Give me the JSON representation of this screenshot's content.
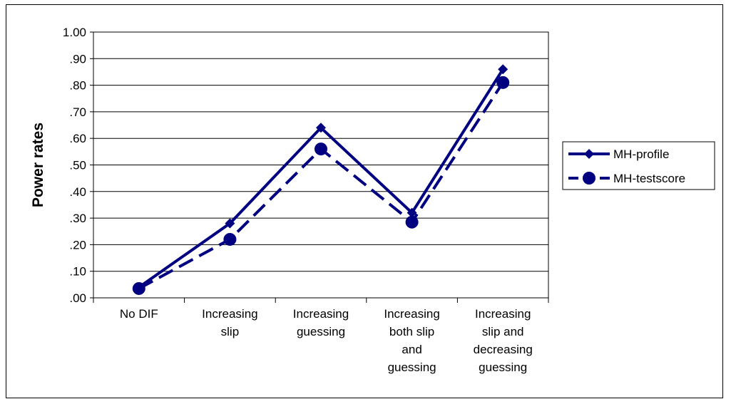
{
  "chart_data": {
    "type": "line",
    "ylabel": "Power rates",
    "xlabel": "",
    "ylim": [
      0,
      1
    ],
    "yticks": [
      {
        "value": 0.0,
        "label": ".00"
      },
      {
        "value": 0.1,
        "label": ".10"
      },
      {
        "value": 0.2,
        "label": ".20"
      },
      {
        "value": 0.3,
        "label": ".30"
      },
      {
        "value": 0.4,
        "label": ".40"
      },
      {
        "value": 0.5,
        "label": ".50"
      },
      {
        "value": 0.6,
        "label": ".60"
      },
      {
        "value": 0.7,
        "label": ".70"
      },
      {
        "value": 0.8,
        "label": ".80"
      },
      {
        "value": 0.9,
        "label": ".90"
      },
      {
        "value": 1.0,
        "label": "1.00"
      }
    ],
    "categories": [
      [
        "No DIF"
      ],
      [
        "Increasing",
        "slip"
      ],
      [
        "Increasing",
        "guessing"
      ],
      [
        "Increasing",
        "both slip",
        "and",
        "guessing"
      ],
      [
        "Increasing",
        "slip and",
        "decreasing",
        "guessing"
      ]
    ],
    "grid": true,
    "legend_position": "right",
    "series": [
      {
        "name": "MH-profile",
        "values": [
          0.04,
          0.28,
          0.64,
          0.32,
          0.86
        ],
        "marker": "diamond",
        "dash": "solid",
        "color": "#000080"
      },
      {
        "name": "MH-testscore",
        "values": [
          0.035,
          0.22,
          0.56,
          0.285,
          0.81
        ],
        "marker": "circle",
        "dash": "dashed",
        "color": "#000080"
      }
    ]
  }
}
